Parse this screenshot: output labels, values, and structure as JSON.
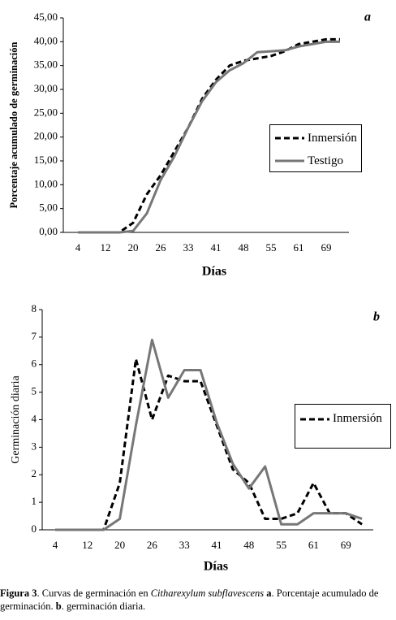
{
  "chart_data": [
    {
      "type": "line",
      "panel": "a",
      "ylabel": "Porcentaje acumulado de germinación",
      "xlabel": "Días",
      "categories": [
        "4",
        null,
        "12",
        null,
        "20",
        null,
        "26",
        null,
        "33",
        null,
        "41",
        null,
        "48",
        null,
        "55",
        null,
        "61",
        null,
        "69",
        null
      ],
      "ylim": [
        0,
        45
      ],
      "yticks": [
        {
          "value": 0,
          "label": "0,00"
        },
        {
          "value": 5,
          "label": "5,00"
        },
        {
          "value": 10,
          "label": "10,00"
        },
        {
          "value": 15,
          "label": "15,00"
        },
        {
          "value": 20,
          "label": "20,00"
        },
        {
          "value": 25,
          "label": "25,00"
        },
        {
          "value": 30,
          "label": "30,00"
        },
        {
          "value": 35,
          "label": "35,00"
        },
        {
          "value": 40,
          "label": "40,00"
        },
        {
          "value": 45,
          "label": "45,00"
        }
      ],
      "series": [
        {
          "name": "Inmersión",
          "color": "#000000",
          "dash": true,
          "values": [
            0,
            0,
            0,
            0,
            2,
            8,
            12,
            17,
            22,
            28,
            32,
            35,
            36,
            36.5,
            37,
            38,
            39.5,
            40,
            40.5,
            40.5
          ]
        },
        {
          "name": "Testigo",
          "color": "#777777",
          "dash": false,
          "values": [
            0,
            0,
            0,
            0,
            0.3,
            4,
            11,
            16,
            22,
            27.5,
            31.5,
            34,
            35.5,
            37.8,
            38,
            38.2,
            39,
            39.5,
            40,
            40
          ]
        }
      ]
    },
    {
      "type": "line",
      "panel": "b",
      "ylabel": "Germinación diaria",
      "xlabel": "Días",
      "categories": [
        "4",
        null,
        "12",
        null,
        "20",
        null,
        "26",
        null,
        "33",
        null,
        "41",
        null,
        "48",
        null,
        "55",
        null,
        "61",
        null,
        "69",
        null
      ],
      "ylim": [
        0,
        8
      ],
      "yticks": [
        0,
        1,
        2,
        3,
        4,
        5,
        6,
        7,
        8
      ],
      "series": [
        {
          "name": "Inmersión",
          "color": "#000000",
          "dash": true,
          "values": [
            0,
            0,
            0,
            0,
            1.7,
            6.2,
            4.0,
            5.6,
            5.4,
            5.4,
            3.8,
            2.2,
            1.7,
            0.4,
            0.4,
            0.6,
            1.7,
            0.6,
            0.6,
            0.2
          ]
        },
        {
          "color": "#777777",
          "dash": false,
          "values": [
            0,
            0,
            0,
            0,
            0.4,
            3.8,
            6.9,
            4.8,
            5.8,
            5.8,
            3.9,
            2.4,
            1.5,
            2.3,
            0.2,
            0.2,
            0.6,
            0.6,
            0.6,
            0.4
          ]
        }
      ]
    }
  ],
  "caption": [
    {
      "text": "Figura 3",
      "style": "bold"
    },
    {
      "text": ". Curvas de germinación en ",
      "style": "normal"
    },
    {
      "text": "Citharexylum subflavescens",
      "style": "italic"
    },
    {
      "text": " a",
      "style": "bold"
    },
    {
      "text": ". Porcentaje acumulado de germinación. ",
      "style": "normal"
    },
    {
      "text": "b",
      "style": "bold"
    },
    {
      "text": ". germinación diaria.",
      "style": "normal"
    }
  ]
}
